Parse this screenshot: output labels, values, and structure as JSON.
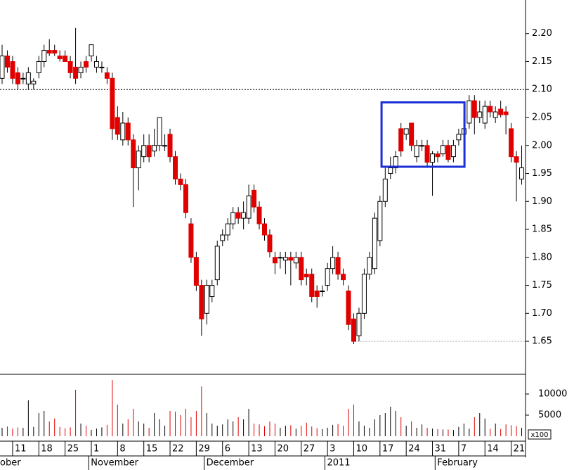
{
  "chart_data": {
    "type": "candlestick",
    "categories": [
      null,
      null,
      "11",
      null,
      null,
      null,
      null,
      "18",
      null,
      null,
      null,
      null,
      "25",
      null,
      null,
      null,
      null,
      "1",
      null,
      null,
      null,
      null,
      "8",
      null,
      null,
      null,
      null,
      "15",
      null,
      null,
      null,
      null,
      "22",
      null,
      null,
      null,
      null,
      "29",
      null,
      null,
      null,
      null,
      "6",
      null,
      null,
      null,
      null,
      "13",
      null,
      null,
      null,
      null,
      "20",
      null,
      null,
      null,
      null,
      "27",
      null,
      null,
      null,
      null,
      "3",
      null,
      null,
      null,
      null,
      "10",
      null,
      null,
      null,
      null,
      "17",
      null,
      null,
      null,
      null,
      "24",
      null,
      null,
      null,
      null,
      "31",
      null,
      null,
      null,
      null,
      "7",
      null,
      null,
      null,
      null,
      "14",
      null,
      null,
      null,
      null,
      "21",
      null,
      null
    ],
    "months": [
      {
        "label": "ober",
        "index": 0
      },
      {
        "label": "November",
        "index": 17
      },
      {
        "label": "December",
        "index": 39
      },
      {
        "label": "2011",
        "index": 62
      },
      {
        "label": "February",
        "index": 83
      }
    ],
    "ohlc": [
      [
        2.12,
        2.18,
        2.11,
        2.16
      ],
      [
        2.16,
        2.17,
        2.13,
        2.14
      ],
      [
        2.15,
        2.16,
        2.11,
        2.12
      ],
      [
        2.13,
        2.14,
        2.1,
        2.11
      ],
      [
        2.12,
        2.13,
        2.11,
        2.12
      ],
      [
        2.11,
        2.14,
        2.1,
        2.13
      ],
      [
        2.11,
        2.12,
        2.1,
        2.115
      ],
      [
        2.13,
        2.16,
        2.12,
        2.15
      ],
      [
        2.15,
        2.18,
        2.14,
        2.17
      ],
      [
        2.17,
        2.19,
        2.16,
        2.165
      ],
      [
        2.17,
        2.18,
        2.16,
        2.165
      ],
      [
        2.16,
        2.17,
        2.15,
        2.155
      ],
      [
        2.16,
        2.17,
        2.15,
        2.15
      ],
      [
        2.15,
        2.16,
        2.12,
        2.13
      ],
      [
        2.14,
        2.21,
        2.11,
        2.12
      ],
      [
        2.13,
        2.15,
        2.12,
        2.14
      ],
      [
        2.15,
        2.16,
        2.13,
        2.14
      ],
      [
        2.16,
        2.18,
        2.15,
        2.18
      ],
      [
        2.14,
        2.16,
        2.13,
        2.15
      ],
      [
        2.14,
        2.15,
        2.13,
        2.14
      ],
      [
        2.13,
        2.14,
        2.11,
        2.12
      ],
      [
        2.12,
        2.13,
        2.01,
        2.03
      ],
      [
        2.05,
        2.07,
        2.01,
        2.02
      ],
      [
        2.01,
        2.06,
        2.0,
        2.04
      ],
      [
        2.04,
        2.05,
        2.0,
        2.01
      ],
      [
        2.01,
        2.02,
        1.89,
        1.96
      ],
      [
        1.96,
        2.0,
        1.92,
        1.99
      ],
      [
        1.98,
        2.02,
        1.97,
        2.0
      ],
      [
        2.0,
        2.02,
        1.97,
        1.98
      ],
      [
        1.99,
        2.03,
        1.98,
        2.0
      ],
      [
        2.0,
        2.05,
        1.99,
        2.05
      ],
      [
        2.0,
        2.02,
        1.99,
        2.0
      ],
      [
        2.02,
        2.03,
        1.97,
        1.98
      ],
      [
        1.98,
        1.99,
        1.93,
        1.94
      ],
      [
        1.94,
        1.95,
        1.92,
        1.93
      ],
      [
        1.93,
        1.94,
        1.87,
        1.88
      ],
      [
        1.86,
        1.87,
        1.79,
        1.8
      ],
      [
        1.8,
        1.81,
        1.74,
        1.75
      ],
      [
        1.75,
        1.76,
        1.66,
        1.69
      ],
      [
        1.7,
        1.76,
        1.68,
        1.75
      ],
      [
        1.73,
        1.76,
        1.72,
        1.75
      ],
      [
        1.76,
        1.83,
        1.75,
        1.82
      ],
      [
        1.83,
        1.85,
        1.82,
        1.84
      ],
      [
        1.84,
        1.87,
        1.83,
        1.86
      ],
      [
        1.86,
        1.89,
        1.85,
        1.88
      ],
      [
        1.88,
        1.89,
        1.86,
        1.87
      ],
      [
        1.87,
        1.9,
        1.85,
        1.88
      ],
      [
        1.87,
        1.93,
        1.86,
        1.91
      ],
      [
        1.92,
        1.93,
        1.88,
        1.89
      ],
      [
        1.89,
        1.9,
        1.85,
        1.86
      ],
      [
        1.86,
        1.87,
        1.83,
        1.84
      ],
      [
        1.84,
        1.85,
        1.8,
        1.81
      ],
      [
        1.8,
        1.81,
        1.77,
        1.79
      ],
      [
        1.8,
        1.81,
        1.78,
        1.8
      ],
      [
        1.795,
        1.81,
        1.77,
        1.8
      ],
      [
        1.8,
        1.81,
        1.75,
        1.795
      ],
      [
        1.79,
        1.81,
        1.78,
        1.8
      ],
      [
        1.8,
        1.81,
        1.75,
        1.76
      ],
      [
        1.77,
        1.78,
        1.75,
        1.765
      ],
      [
        1.77,
        1.78,
        1.72,
        1.73
      ],
      [
        1.74,
        1.75,
        1.71,
        1.73
      ],
      [
        1.74,
        1.75,
        1.73,
        1.74
      ],
      [
        1.75,
        1.79,
        1.74,
        1.78
      ],
      [
        1.78,
        1.82,
        1.77,
        1.8
      ],
      [
        1.8,
        1.81,
        1.76,
        1.77
      ],
      [
        1.77,
        1.78,
        1.75,
        1.76
      ],
      [
        1.74,
        1.75,
        1.67,
        1.68
      ],
      [
        1.69,
        1.7,
        1.645,
        1.65
      ],
      [
        1.66,
        1.71,
        1.65,
        1.7
      ],
      [
        1.7,
        1.78,
        1.69,
        1.77
      ],
      [
        1.77,
        1.81,
        1.76,
        1.8
      ],
      [
        1.78,
        1.88,
        1.77,
        1.87
      ],
      [
        1.83,
        1.91,
        1.82,
        1.9
      ],
      [
        1.9,
        1.96,
        1.89,
        1.94
      ],
      [
        1.95,
        1.98,
        1.94,
        1.96
      ],
      [
        1.96,
        1.99,
        1.95,
        1.98
      ],
      [
        2.03,
        2.04,
        1.98,
        1.99
      ],
      [
        2.02,
        2.03,
        2.01,
        2.03
      ],
      [
        2.04,
        2.04,
        1.99,
        2.0
      ],
      [
        1.98,
        2.01,
        1.97,
        2.0
      ],
      [
        2.0,
        2.01,
        1.99,
        2.0
      ],
      [
        2.0,
        2.01,
        1.96,
        1.97
      ],
      [
        1.97,
        1.99,
        1.91,
        1.985
      ],
      [
        1.985,
        1.99,
        1.97,
        1.98
      ],
      [
        1.985,
        2.01,
        1.98,
        2.0
      ],
      [
        2.0,
        2.01,
        1.97,
        1.975
      ],
      [
        1.98,
        2.01,
        1.97,
        2.0
      ],
      [
        2.01,
        2.03,
        2.0,
        2.02
      ],
      [
        2.02,
        2.05,
        2.0,
        2.03
      ],
      [
        2.04,
        2.09,
        2.03,
        2.08
      ],
      [
        2.08,
        2.09,
        2.02,
        2.05
      ],
      [
        2.05,
        2.08,
        2.04,
        2.06
      ],
      [
        2.04,
        2.08,
        2.03,
        2.07
      ],
      [
        2.07,
        2.08,
        2.05,
        2.06
      ],
      [
        2.05,
        2.07,
        2.04,
        2.06
      ],
      [
        2.065,
        2.08,
        2.05,
        2.055
      ],
      [
        2.06,
        2.07,
        2.02,
        2.055
      ],
      [
        2.03,
        2.04,
        1.97,
        1.98
      ],
      [
        1.98,
        1.99,
        1.9,
        1.97
      ],
      [
        1.94,
        2.0,
        1.93,
        1.96
      ]
    ],
    "volume": [
      2000,
      2300,
      1800,
      2100,
      2000,
      8500,
      2200,
      5500,
      6000,
      3500,
      4200,
      2200,
      1900,
      2100,
      11000,
      3000,
      2500,
      1500,
      1800,
      2100,
      2700,
      13300,
      7500,
      3000,
      4000,
      6500,
      3500,
      3000,
      2000,
      5500,
      4000,
      2500,
      6000,
      5800,
      5000,
      6500,
      4500,
      6000,
      11800,
      5500,
      3000,
      2500,
      2800,
      4000,
      3500,
      4500,
      4000,
      6500,
      3000,
      2800,
      2400,
      3500,
      3000,
      2000,
      2500,
      2600,
      1800,
      2500,
      3200,
      2300,
      1900,
      1700,
      2000,
      2700,
      2900,
      2500,
      6500,
      7500,
      3500,
      2500,
      2000,
      4000,
      5000,
      5500,
      7000,
      6000,
      4500,
      2500,
      3500,
      2000,
      2800,
      2000,
      1800,
      1700,
      1600,
      1600,
      1500,
      2200,
      3000,
      1800,
      4500,
      5500,
      4200,
      1800,
      3000,
      1700,
      2800,
      2600,
      2400,
      2000
    ],
    "volume_unit": "x100",
    "up_color": "#ffffff",
    "down_color": "#e00000",
    "volume_up_color": "#000000",
    "volume_down_color": "#e00000",
    "ylim": [
      1.591,
      2.26
    ],
    "yticks": [
      1.65,
      {
        "value": 1.7,
        "label": "1.70"
      },
      1.75,
      {
        "value": 1.8,
        "label": "1.80"
      },
      1.85,
      {
        "value": 1.9,
        "label": "1.90"
      },
      1.95,
      {
        "value": 2.0,
        "label": "2.00"
      },
      2.05,
      {
        "value": 2.1,
        "label": "2.10"
      },
      2.15,
      {
        "value": 2.2,
        "label": "2.20"
      }
    ],
    "y2lim": [
      0,
      14500
    ],
    "y2ticks": [
      5000,
      10000
    ],
    "lines": [
      {
        "value": 2.1,
        "from": 0,
        "color": "#000000"
      },
      {
        "value": 1.65,
        "from": 67,
        "color": "#aaaaaa"
      }
    ],
    "highlight": {
      "from": 72.3,
      "to": 88.1,
      "low": 1.962,
      "high": 2.077,
      "color": "#1a2fd6"
    }
  }
}
